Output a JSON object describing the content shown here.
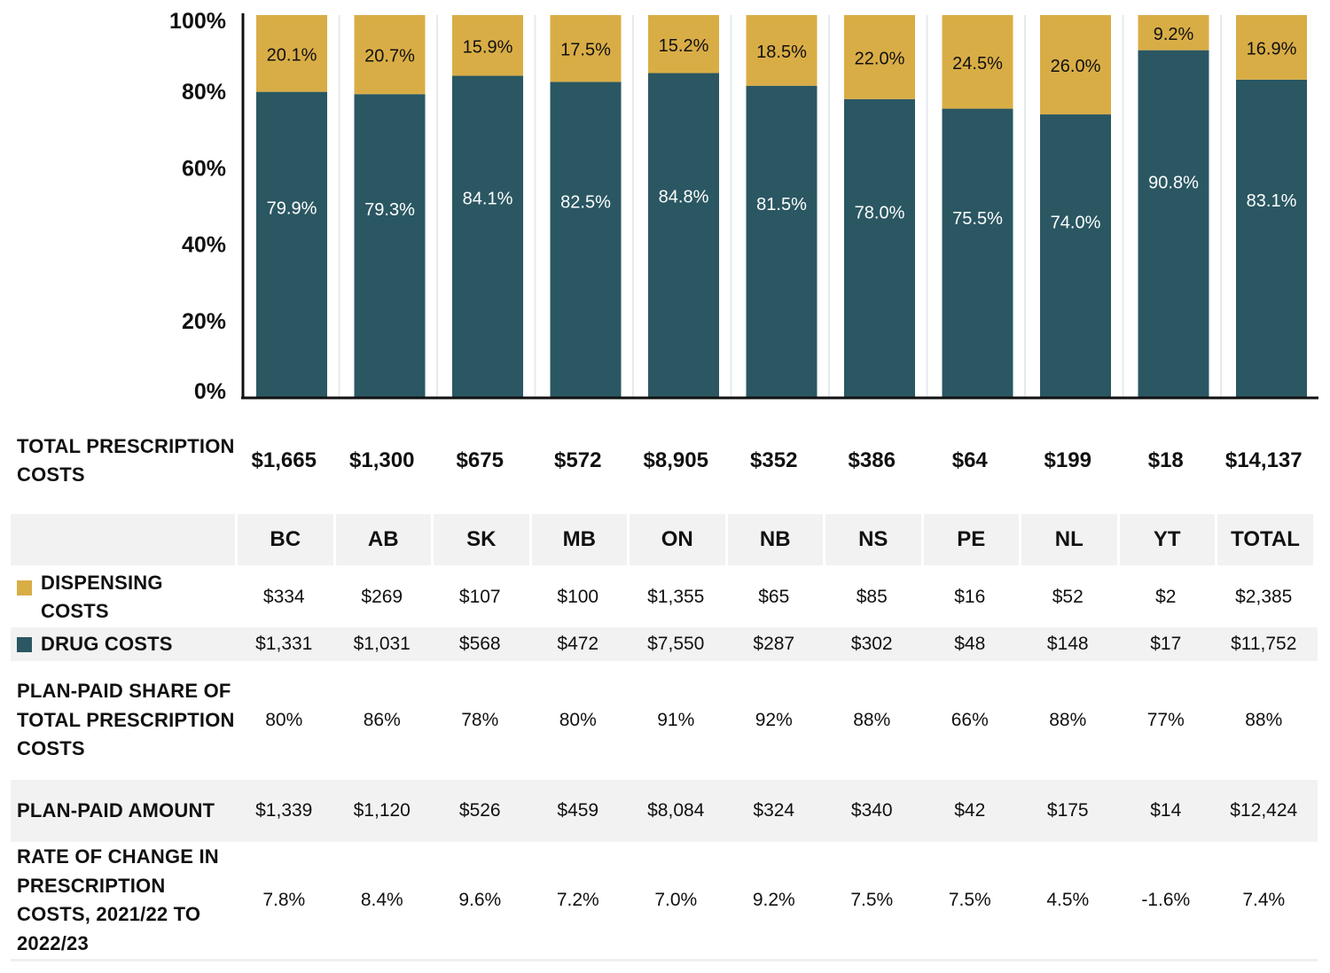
{
  "chart_data": {
    "type": "bar",
    "stacked": true,
    "orientation": "vertical",
    "categories": [
      "BC",
      "AB",
      "SK",
      "MB",
      "ON",
      "NB",
      "NS",
      "PE",
      "NL",
      "YT",
      "TOTAL"
    ],
    "series": [
      {
        "name": "Drug costs",
        "color": "#2a5762",
        "values": [
          79.9,
          79.3,
          84.1,
          82.5,
          84.8,
          81.5,
          78.0,
          75.5,
          74.0,
          90.8,
          83.1
        ],
        "labels": [
          "79.9%",
          "79.3%",
          "84.1%",
          "82.5%",
          "84.8%",
          "81.5%",
          "78.0%",
          "75.5%",
          "74.0%",
          "90.8%",
          "83.1%"
        ]
      },
      {
        "name": "Dispensing costs",
        "color": "#d9ad46",
        "values": [
          20.1,
          20.7,
          15.9,
          17.5,
          15.2,
          18.5,
          22.0,
          24.5,
          26.0,
          9.2,
          16.9
        ],
        "labels": [
          "20.1%",
          "20.7%",
          "15.9%",
          "17.5%",
          "15.2%",
          "18.5%",
          "22.0%",
          "24.5%",
          "26.0%",
          "9.2%",
          "16.9%"
        ]
      }
    ],
    "yticks": [
      "0%",
      "20%",
      "40%",
      "60%",
      "80%",
      "100%"
    ],
    "ytick_values": [
      0,
      20,
      40,
      60,
      80,
      100
    ],
    "ylim": [
      0,
      100
    ],
    "title": "",
    "xlabel": "",
    "ylabel": "",
    "grid": false,
    "legend": "table-left"
  },
  "table": {
    "total_row": {
      "label": "Total prescription costs",
      "values": [
        "$1,665",
        "$1,300",
        "$675",
        "$572",
        "$8,905",
        "$352",
        "$386",
        "$64",
        "$199",
        "$18",
        "$14,137"
      ]
    },
    "header": {
      "label": "",
      "columns": [
        "BC",
        "AB",
        "SK",
        "MB",
        "ON",
        "NB",
        "NS",
        "PE",
        "NL",
        "YT",
        "TOTAL"
      ]
    },
    "rows": [
      {
        "label": "Dispensing costs",
        "swatch": "#d9ad46",
        "values": [
          "$334",
          "$269",
          "$107",
          "$100",
          "$1,355",
          "$65",
          "$85",
          "$16",
          "$52",
          "$2",
          "$2,385"
        ]
      },
      {
        "label": "Drug costs",
        "swatch": "#2a5762",
        "values": [
          "$1,331",
          "$1,031",
          "$568",
          "$472",
          "$7,550",
          "$287",
          "$302",
          "$48",
          "$148",
          "$17",
          "$11,752"
        ]
      },
      {
        "label": "Plan-paid share of total prescription costs",
        "values": [
          "80%",
          "86%",
          "78%",
          "80%",
          "91%",
          "92%",
          "88%",
          "66%",
          "88%",
          "77%",
          "88%"
        ]
      },
      {
        "label": "Plan-paid amount",
        "values": [
          "$1,339",
          "$1,120",
          "$526",
          "$459",
          "$8,084",
          "$324",
          "$340",
          "$42",
          "$175",
          "$14",
          "$12,424"
        ]
      },
      {
        "label": "Rate of change in prescription costs, 2021/22 to 2022/23",
        "values": [
          "7.8%",
          "8.4%",
          "9.6%",
          "7.2%",
          "7.0%",
          "9.2%",
          "7.5%",
          "7.5%",
          "4.5%",
          "-1.6%",
          "7.4%"
        ]
      }
    ]
  },
  "colors": {
    "dispensing": "#d9ad46",
    "drug": "#2a5762",
    "row_shade": "#f1f2f1",
    "separator": "#e3ebef"
  }
}
